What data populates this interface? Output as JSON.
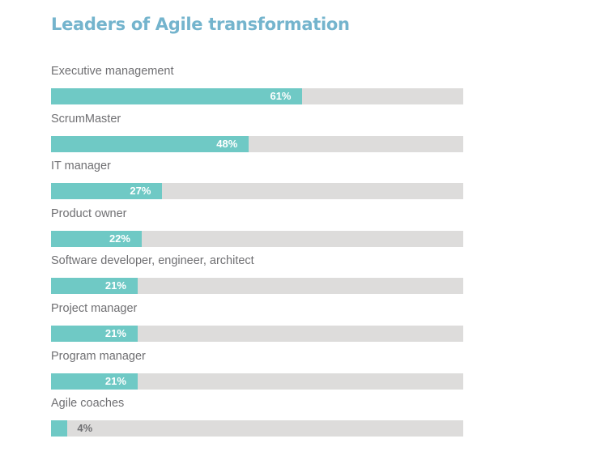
{
  "chart_data": {
    "type": "bar",
    "orientation": "horizontal",
    "title": "Leaders of Agile transformation",
    "xlabel": "",
    "ylabel": "",
    "xlim": [
      0,
      100
    ],
    "grid": false,
    "categories": [
      "Executive management",
      "ScrumMaster",
      "IT manager",
      "Product owner",
      "Software developer, engineer, architect",
      "Project manager",
      "Program manager",
      "Agile coaches"
    ],
    "values": [
      61,
      48,
      27,
      22,
      21,
      21,
      21,
      4
    ],
    "value_labels": [
      "61%",
      "48%",
      "27%",
      "22%",
      "21%",
      "21%",
      "21%",
      "4%"
    ],
    "unit": "%"
  },
  "colors": {
    "title": "#74b4cd",
    "fill": "#6fc9c5",
    "track": "#dddcdb",
    "label": "#6f6f72"
  }
}
